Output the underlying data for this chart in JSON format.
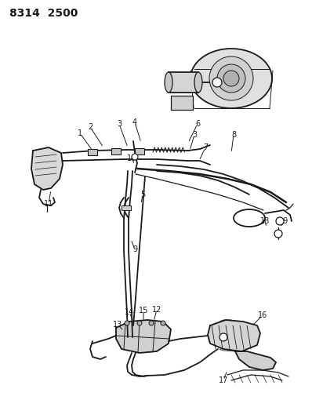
{
  "title": "8314  2500",
  "bg_color": "#ffffff",
  "line_color": "#1a1a1a",
  "label_color": "#1a1a1a",
  "label_fontsize": 7.0,
  "title_fontsize": 10,
  "fig_width": 3.98,
  "fig_height": 5.33,
  "dpi": 100
}
